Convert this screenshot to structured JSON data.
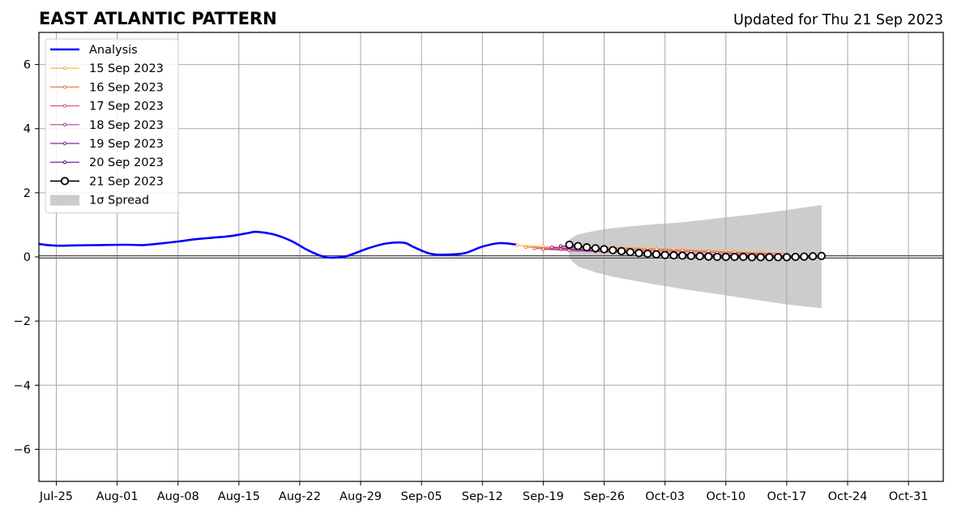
{
  "figure": {
    "title": "EAST ATLANTIC PATTERN",
    "updated": "Updated for Thu 21 Sep 2023"
  },
  "chart_data": {
    "type": "line",
    "title": "EAST ATLANTIC PATTERN",
    "subtitle": "Updated for Thu 21 Sep 2023",
    "xlabel": "",
    "ylabel": "",
    "x_axis_type": "date",
    "xlim": [
      "2023-07-23",
      "2023-11-04"
    ],
    "ylim": [
      -7,
      7
    ],
    "x_ticks": [
      "2023-07-25",
      "2023-08-01",
      "2023-08-08",
      "2023-08-15",
      "2023-08-22",
      "2023-08-29",
      "2023-09-05",
      "2023-09-12",
      "2023-09-19",
      "2023-09-26",
      "2023-10-03",
      "2023-10-10",
      "2023-10-17",
      "2023-10-24",
      "2023-10-31"
    ],
    "x_tick_labels": [
      "Jul-25",
      "Aug-01",
      "Aug-08",
      "Aug-15",
      "Aug-22",
      "Aug-29",
      "Sep-05",
      "Sep-12",
      "Sep-19",
      "Sep-26",
      "Oct-03",
      "Oct-10",
      "Oct-17",
      "Oct-24",
      "Oct-31"
    ],
    "y_ticks": [
      -6,
      -4,
      -2,
      0,
      2,
      4,
      6
    ],
    "y_tick_labels": [
      "−6",
      "−4",
      "−2",
      "0",
      "2",
      "4",
      "6"
    ],
    "grid": true,
    "zero_line": 0,
    "legend_position": "top-left",
    "series": [
      {
        "name": "Analysis",
        "color": "#0000ff",
        "style": "line",
        "x": [
          "2023-07-23",
          "2023-07-25",
          "2023-07-27",
          "2023-07-30",
          "2023-08-02",
          "2023-08-04",
          "2023-08-06",
          "2023-08-08",
          "2023-08-10",
          "2023-08-12",
          "2023-08-14",
          "2023-08-16",
          "2023-08-17",
          "2023-08-19",
          "2023-08-21",
          "2023-08-23",
          "2023-08-25",
          "2023-08-27",
          "2023-08-28",
          "2023-08-30",
          "2023-09-01",
          "2023-09-03",
          "2023-09-04",
          "2023-09-06",
          "2023-09-08",
          "2023-09-10",
          "2023-09-12",
          "2023-09-14",
          "2023-09-16"
        ],
        "values": [
          0.4,
          0.35,
          0.36,
          0.37,
          0.38,
          0.37,
          0.42,
          0.48,
          0.55,
          0.6,
          0.65,
          0.74,
          0.78,
          0.7,
          0.5,
          0.2,
          -0.01,
          0.0,
          0.08,
          0.28,
          0.42,
          0.44,
          0.32,
          0.1,
          0.07,
          0.12,
          0.32,
          0.43,
          0.38
        ]
      },
      {
        "name": "15 Sep 2023",
        "color": "#ffa940",
        "style": "marker-line",
        "x": [
          "2023-09-16",
          "2023-09-19",
          "2023-09-22",
          "2023-09-25",
          "2023-09-28",
          "2023-10-01",
          "2023-10-04",
          "2023-10-07",
          "2023-10-10",
          "2023-10-13",
          "2023-10-16"
        ],
        "values": [
          0.36,
          0.32,
          0.31,
          0.3,
          0.29,
          0.27,
          0.24,
          0.2,
          0.17,
          0.14,
          0.12
        ]
      },
      {
        "name": "16 Sep 2023",
        "color": "#f07f3c",
        "style": "marker-line",
        "x": [
          "2023-09-17",
          "2023-09-20",
          "2023-09-23",
          "2023-09-26",
          "2023-09-29",
          "2023-10-02",
          "2023-10-05",
          "2023-10-08",
          "2023-10-11",
          "2023-10-14",
          "2023-10-17"
        ],
        "values": [
          0.3,
          0.28,
          0.27,
          0.27,
          0.26,
          0.24,
          0.21,
          0.18,
          0.15,
          0.12,
          0.1
        ]
      },
      {
        "name": "17 Sep 2023",
        "color": "#d75a6e",
        "style": "marker-line",
        "x": [
          "2023-09-18",
          "2023-09-21",
          "2023-09-24",
          "2023-09-27",
          "2023-09-30",
          "2023-10-03",
          "2023-10-06",
          "2023-10-09",
          "2023-10-12",
          "2023-10-15"
        ],
        "values": [
          0.26,
          0.24,
          0.23,
          0.22,
          0.21,
          0.19,
          0.16,
          0.13,
          0.1,
          0.08
        ]
      },
      {
        "name": "18 Sep 2023",
        "color": "#b83b8e",
        "style": "marker-line",
        "x": [
          "2023-09-19",
          "2023-09-22",
          "2023-09-25",
          "2023-09-28",
          "2023-10-01",
          "2023-10-04",
          "2023-10-07",
          "2023-10-10",
          "2023-10-13",
          "2023-10-16"
        ],
        "values": [
          0.24,
          0.2,
          0.17,
          0.15,
          0.12,
          0.09,
          0.07,
          0.06,
          0.05,
          0.04
        ]
      },
      {
        "name": "19 Sep 2023",
        "color": "#8f1ea8",
        "style": "marker-line",
        "x": [
          "2023-09-20",
          "2023-09-23",
          "2023-09-26",
          "2023-09-29",
          "2023-10-02",
          "2023-10-05",
          "2023-10-08",
          "2023-10-11",
          "2023-10-14",
          "2023-10-17"
        ],
        "values": [
          0.3,
          0.22,
          0.17,
          0.13,
          0.1,
          0.07,
          0.05,
          0.04,
          0.03,
          0.03
        ]
      },
      {
        "name": "20 Sep 2023",
        "color": "#5a0e8e",
        "style": "marker-line",
        "x": [
          "2023-09-21",
          "2023-09-24",
          "2023-09-27",
          "2023-09-30",
          "2023-10-03",
          "2023-10-06",
          "2023-10-09",
          "2023-10-12",
          "2023-10-15",
          "2023-10-18"
        ],
        "values": [
          0.34,
          0.27,
          0.2,
          0.14,
          0.1,
          0.07,
          0.05,
          0.04,
          0.03,
          0.03
        ]
      },
      {
        "name": "21 Sep 2023",
        "color": "#000000",
        "style": "open-circle-line",
        "x": [
          "2023-09-22",
          "2023-09-23",
          "2023-09-24",
          "2023-09-25",
          "2023-09-26",
          "2023-09-27",
          "2023-09-28",
          "2023-09-29",
          "2023-09-30",
          "2023-10-01",
          "2023-10-02",
          "2023-10-03",
          "2023-10-04",
          "2023-10-05",
          "2023-10-06",
          "2023-10-07",
          "2023-10-08",
          "2023-10-09",
          "2023-10-10",
          "2023-10-11",
          "2023-10-12",
          "2023-10-13",
          "2023-10-14",
          "2023-10-15",
          "2023-10-16",
          "2023-10-17",
          "2023-10-18",
          "2023-10-19",
          "2023-10-20",
          "2023-10-21"
        ],
        "values": [
          0.38,
          0.34,
          0.3,
          0.27,
          0.24,
          0.21,
          0.18,
          0.15,
          0.12,
          0.1,
          0.08,
          0.06,
          0.05,
          0.04,
          0.03,
          0.02,
          0.01,
          0.0,
          0.0,
          0.0,
          0.0,
          -0.01,
          -0.01,
          -0.01,
          -0.01,
          -0.01,
          0.0,
          0.01,
          0.02,
          0.03
        ]
      }
    ],
    "spread": {
      "name": "1σ Spread",
      "color": "#cccccc",
      "x": [
        "2023-09-22",
        "2023-09-23",
        "2023-09-25",
        "2023-09-27",
        "2023-09-29",
        "2023-10-01",
        "2023-10-05",
        "2023-10-09",
        "2023-10-13",
        "2023-10-17",
        "2023-10-21"
      ],
      "upper": [
        0.55,
        0.7,
        0.82,
        0.9,
        0.95,
        1.0,
        1.08,
        1.2,
        1.32,
        1.46,
        1.62
      ],
      "lower": [
        -0.05,
        -0.3,
        -0.48,
        -0.62,
        -0.72,
        -0.82,
        -1.0,
        -1.16,
        -1.32,
        -1.48,
        -1.6
      ]
    }
  }
}
